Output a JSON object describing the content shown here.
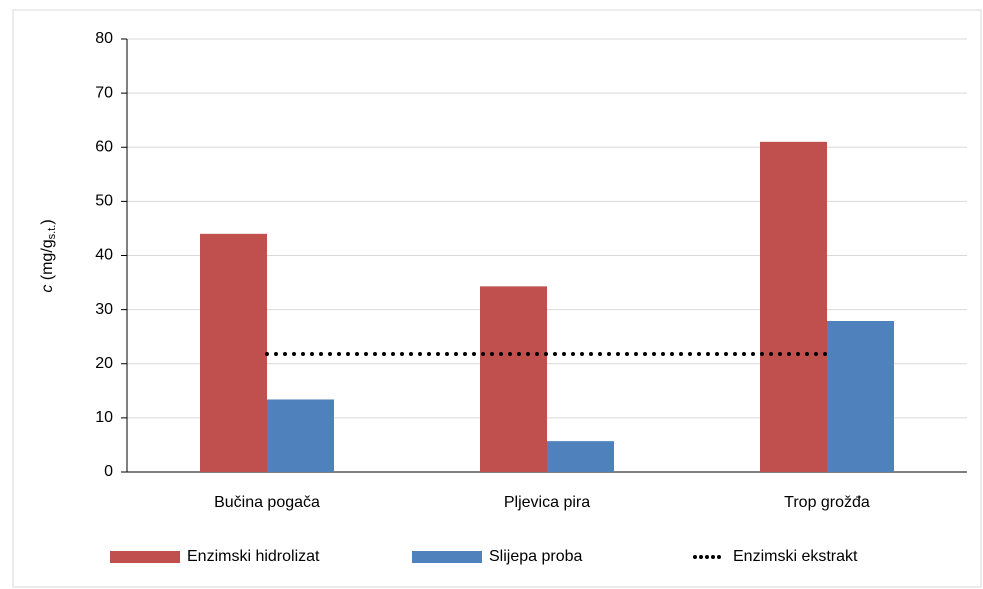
{
  "chart_data": {
    "type": "bar",
    "ylabel": {
      "italic": "c",
      "text": " (mg/g",
      "sub": "s.t.",
      "end": ")"
    },
    "categories": [
      "Bučina pogača",
      "Pljevica pira",
      "Trop grožđa"
    ],
    "series": [
      {
        "name": "Enzimski hidrolizat",
        "type": "bar",
        "color": "#c0504d",
        "values": [
          44,
          34.3,
          61
        ]
      },
      {
        "name": "Slijepa proba",
        "type": "bar",
        "color": "#4f81bd",
        "values": [
          13.4,
          5.7,
          27.9
        ]
      },
      {
        "name": "Enzimski ekstrakt",
        "type": "line",
        "color": "#000000",
        "values": [
          21.8,
          21.8,
          21.8
        ]
      }
    ],
    "ylim": [
      0,
      80
    ],
    "yticks": [
      0,
      10,
      20,
      30,
      40,
      50,
      60,
      70,
      80
    ],
    "grid": true,
    "legend": "bottom"
  }
}
